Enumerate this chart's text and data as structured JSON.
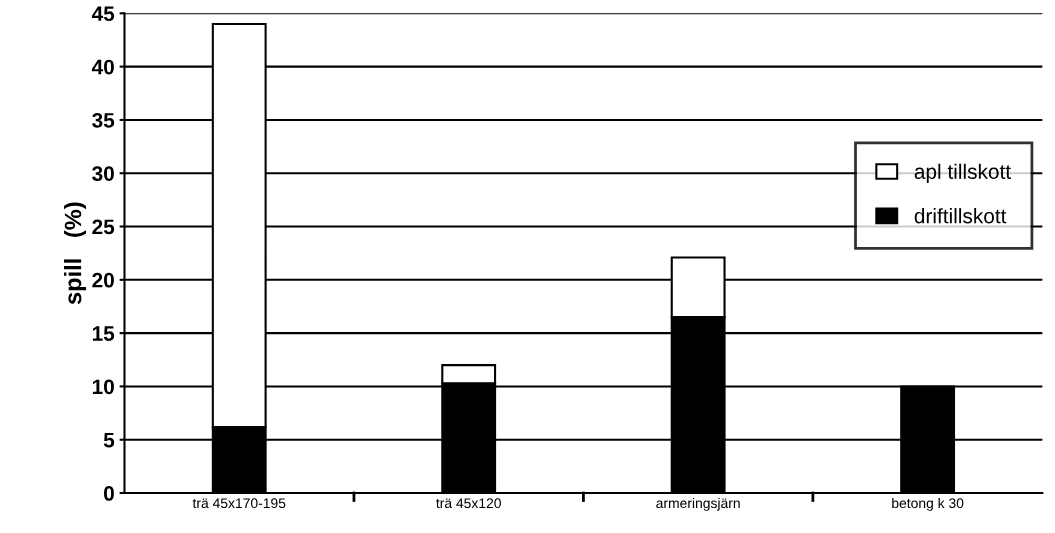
{
  "chart_data": {
    "type": "bar",
    "stacked": true,
    "ylabel": "spill   (%)",
    "categories": [
      "trä 45x170-195",
      "trä 45x120",
      "armeringsjärn",
      "betong k 30"
    ],
    "series": [
      {
        "name": "driftillskott",
        "color": "#000000",
        "values": [
          6.2,
          10.3,
          16.5,
          10
        ]
      },
      {
        "name": "apl tillskott",
        "color": "#ffffff",
        "values": [
          37.8,
          1.7,
          5.6,
          null
        ]
      }
    ],
    "ylim": [
      0,
      45
    ],
    "yticks": [
      0,
      5,
      10,
      15,
      20,
      25,
      30,
      35,
      40,
      45
    ],
    "grid": "y",
    "legend": "right"
  }
}
